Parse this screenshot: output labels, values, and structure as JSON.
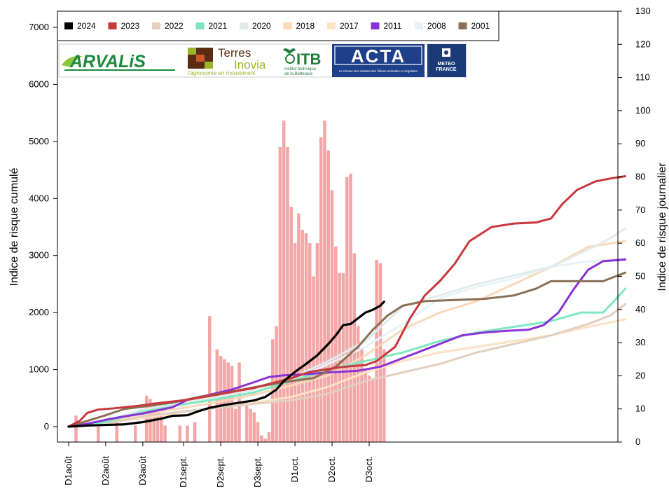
{
  "chart_data": {
    "type": "line",
    "xlabel": "",
    "ylabel": "Indice de risque cumulé",
    "y2label": "Indice de risque journalier",
    "categories": [
      "D1août",
      "D2août",
      "D3août",
      "D1sept.",
      "D2sept.",
      "D3sept.",
      "D1oct.",
      "D2oct.",
      "D3oct."
    ],
    "ylim": [
      0,
      7000
    ],
    "y2lim": [
      0,
      130
    ],
    "yticks": [
      0,
      1000,
      2000,
      3000,
      4000,
      5000,
      6000,
      7000
    ],
    "y2ticks": [
      0,
      10,
      20,
      30,
      40,
      50,
      60,
      70,
      80,
      90,
      100,
      110,
      120,
      130
    ],
    "xlim_days": [
      -3,
      148
    ],
    "category_days": [
      0,
      10,
      20,
      31,
      41,
      51,
      61,
      71,
      81
    ],
    "legend_position": "top-left",
    "grid": false,
    "series": [
      {
        "name": "2024",
        "color": "#000000",
        "width": 3.2,
        "points": [
          [
            0,
            0
          ],
          [
            5,
            20
          ],
          [
            10,
            30
          ],
          [
            15,
            40
          ],
          [
            20,
            80
          ],
          [
            25,
            140
          ],
          [
            28,
            190
          ],
          [
            32,
            200
          ],
          [
            35,
            270
          ],
          [
            38,
            330
          ],
          [
            42,
            380
          ],
          [
            46,
            420
          ],
          [
            50,
            460
          ],
          [
            53,
            520
          ],
          [
            56,
            650
          ],
          [
            58,
            800
          ],
          [
            61,
            960
          ],
          [
            64,
            1100
          ],
          [
            67,
            1250
          ],
          [
            70,
            1450
          ],
          [
            72,
            1600
          ],
          [
            74,
            1780
          ],
          [
            76,
            1800
          ],
          [
            78,
            1900
          ],
          [
            80,
            2000
          ],
          [
            82,
            2050
          ],
          [
            84,
            2120
          ],
          [
            85,
            2190
          ]
        ]
      },
      {
        "name": "2023",
        "color": "#c8373c",
        "width": 3,
        "points": [
          [
            0,
            0
          ],
          [
            3,
            100
          ],
          [
            5,
            240
          ],
          [
            8,
            300
          ],
          [
            12,
            320
          ],
          [
            18,
            360
          ],
          [
            25,
            420
          ],
          [
            32,
            470
          ],
          [
            40,
            560
          ],
          [
            50,
            680
          ],
          [
            60,
            850
          ],
          [
            65,
            960
          ],
          [
            72,
            1030
          ],
          [
            76,
            1060
          ],
          [
            80,
            1080
          ],
          [
            83,
            1150
          ],
          [
            88,
            1400
          ],
          [
            92,
            1900
          ],
          [
            96,
            2300
          ],
          [
            100,
            2550
          ],
          [
            104,
            2850
          ],
          [
            108,
            3250
          ],
          [
            114,
            3500
          ],
          [
            120,
            3560
          ],
          [
            126,
            3580
          ],
          [
            130,
            3650
          ],
          [
            133,
            3900
          ],
          [
            137,
            4150
          ],
          [
            142,
            4300
          ],
          [
            146,
            4350
          ],
          [
            150,
            4390
          ]
        ]
      },
      {
        "name": "2022",
        "color": "#e3cfbf",
        "width": 3,
        "points": [
          [
            0,
            0
          ],
          [
            10,
            50
          ],
          [
            20,
            180
          ],
          [
            30,
            260
          ],
          [
            40,
            330
          ],
          [
            50,
            400
          ],
          [
            60,
            460
          ],
          [
            70,
            580
          ],
          [
            80,
            800
          ],
          [
            90,
            950
          ],
          [
            100,
            1100
          ],
          [
            110,
            1300
          ],
          [
            120,
            1450
          ],
          [
            130,
            1600
          ],
          [
            140,
            1800
          ],
          [
            146,
            1950
          ],
          [
            150,
            2150
          ]
        ]
      },
      {
        "name": "2021",
        "color": "#7fe8c0",
        "width": 3,
        "points": [
          [
            0,
            0
          ],
          [
            10,
            80
          ],
          [
            20,
            260
          ],
          [
            30,
            380
          ],
          [
            40,
            480
          ],
          [
            50,
            600
          ],
          [
            60,
            800
          ],
          [
            70,
            1000
          ],
          [
            80,
            1150
          ],
          [
            90,
            1300
          ],
          [
            100,
            1500
          ],
          [
            110,
            1650
          ],
          [
            120,
            1750
          ],
          [
            130,
            1850
          ],
          [
            138,
            2000
          ],
          [
            144,
            2000
          ],
          [
            147,
            2200
          ],
          [
            150,
            2420
          ]
        ]
      },
      {
        "name": "2020",
        "color": "#dfebeb",
        "width": 3,
        "points": [
          [
            0,
            0
          ],
          [
            10,
            100
          ],
          [
            20,
            300
          ],
          [
            30,
            400
          ],
          [
            40,
            520
          ],
          [
            50,
            650
          ],
          [
            60,
            850
          ],
          [
            70,
            1150
          ],
          [
            80,
            1500
          ],
          [
            90,
            2100
          ],
          [
            100,
            2300
          ],
          [
            110,
            2500
          ],
          [
            120,
            2650
          ],
          [
            130,
            2800
          ],
          [
            140,
            3100
          ],
          [
            146,
            3300
          ],
          [
            150,
            3480
          ]
        ]
      },
      {
        "name": "2018",
        "color": "#fad8b8",
        "width": 3,
        "points": [
          [
            0,
            0
          ],
          [
            10,
            80
          ],
          [
            20,
            220
          ],
          [
            30,
            320
          ],
          [
            40,
            430
          ],
          [
            50,
            560
          ],
          [
            60,
            720
          ],
          [
            70,
            900
          ],
          [
            80,
            1250
          ],
          [
            90,
            1700
          ],
          [
            100,
            2000
          ],
          [
            110,
            2200
          ],
          [
            120,
            2500
          ],
          [
            130,
            2800
          ],
          [
            140,
            3150
          ],
          [
            150,
            3250
          ]
        ]
      },
      {
        "name": "2017",
        "color": "#fde2c2",
        "width": 3,
        "points": [
          [
            0,
            0
          ],
          [
            10,
            60
          ],
          [
            20,
            150
          ],
          [
            30,
            250
          ],
          [
            40,
            330
          ],
          [
            50,
            420
          ],
          [
            60,
            520
          ],
          [
            70,
            700
          ],
          [
            80,
            950
          ],
          [
            90,
            1150
          ],
          [
            100,
            1300
          ],
          [
            110,
            1400
          ],
          [
            120,
            1500
          ],
          [
            130,
            1600
          ],
          [
            140,
            1750
          ],
          [
            150,
            1880
          ]
        ]
      },
      {
        "name": "2011",
        "color": "#8a32d8",
        "width": 3,
        "points": [
          [
            0,
            0
          ],
          [
            5,
            50
          ],
          [
            10,
            120
          ],
          [
            15,
            180
          ],
          [
            20,
            230
          ],
          [
            28,
            340
          ],
          [
            32,
            470
          ],
          [
            38,
            560
          ],
          [
            44,
            650
          ],
          [
            50,
            780
          ],
          [
            54,
            870
          ],
          [
            58,
            900
          ],
          [
            64,
            920
          ],
          [
            70,
            950
          ],
          [
            78,
            980
          ],
          [
            84,
            1050
          ],
          [
            90,
            1200
          ],
          [
            96,
            1350
          ],
          [
            102,
            1500
          ],
          [
            106,
            1600
          ],
          [
            112,
            1650
          ],
          [
            118,
            1680
          ],
          [
            124,
            1700
          ],
          [
            128,
            1780
          ],
          [
            132,
            2000
          ],
          [
            136,
            2400
          ],
          [
            140,
            2750
          ],
          [
            144,
            2900
          ],
          [
            150,
            2930
          ]
        ]
      },
      {
        "name": "2008",
        "color": "#e6f2fa",
        "width": 3,
        "points": [
          [
            0,
            0
          ],
          [
            10,
            120
          ],
          [
            20,
            280
          ],
          [
            30,
            380
          ],
          [
            40,
            480
          ],
          [
            50,
            600
          ],
          [
            60,
            800
          ],
          [
            70,
            1100
          ],
          [
            80,
            1400
          ],
          [
            90,
            1800
          ],
          [
            100,
            2250
          ],
          [
            110,
            2450
          ],
          [
            120,
            2600
          ],
          [
            130,
            2800
          ],
          [
            140,
            2900
          ],
          [
            150,
            2950
          ]
        ]
      },
      {
        "name": "2001",
        "color": "#8a6f55",
        "width": 3,
        "points": [
          [
            0,
            0
          ],
          [
            5,
            100
          ],
          [
            10,
            200
          ],
          [
            15,
            310
          ],
          [
            20,
            350
          ],
          [
            28,
            420
          ],
          [
            35,
            520
          ],
          [
            42,
            590
          ],
          [
            50,
            690
          ],
          [
            60,
            800
          ],
          [
            66,
            850
          ],
          [
            72,
            1050
          ],
          [
            78,
            1400
          ],
          [
            82,
            1700
          ],
          [
            86,
            1950
          ],
          [
            90,
            2120
          ],
          [
            96,
            2200
          ],
          [
            104,
            2220
          ],
          [
            112,
            2240
          ],
          [
            120,
            2300
          ],
          [
            126,
            2420
          ],
          [
            130,
            2550
          ],
          [
            136,
            2550
          ],
          [
            144,
            2550
          ],
          [
            150,
            2700
          ]
        ]
      }
    ],
    "daily_bars": {
      "name": "Indice de risque journalier",
      "color": "#f4a6a6",
      "axis": "right",
      "days": [
        2,
        8,
        13,
        18,
        21,
        22,
        23,
        24,
        25,
        26,
        30,
        32,
        34,
        38,
        40,
        41,
        42,
        43,
        44,
        45,
        46,
        48,
        49,
        50,
        51,
        52,
        53,
        54,
        55,
        56,
        57,
        58,
        59,
        60,
        61,
        62,
        63,
        64,
        65,
        66,
        67,
        68,
        69,
        70,
        71,
        72,
        73,
        74,
        75,
        76,
        77,
        78,
        79,
        80,
        81,
        82,
        83,
        84,
        85
      ],
      "values": [
        8,
        5,
        6,
        5,
        14,
        13,
        12,
        10,
        8,
        5,
        5,
        5,
        6,
        38,
        28,
        26,
        25,
        24,
        23,
        10,
        24,
        12,
        10,
        9,
        6,
        2,
        1,
        3,
        31,
        35,
        89,
        97,
        89,
        71,
        60,
        69,
        64,
        63,
        60,
        50,
        60,
        92,
        97,
        88,
        76,
        59,
        51,
        51,
        80,
        81,
        57,
        35,
        28,
        22,
        20,
        19,
        55,
        54,
        28
      ]
    }
  },
  "legend": {
    "entries": [
      {
        "label": "2024",
        "color": "#000000"
      },
      {
        "label": "2023",
        "color": "#c8373c"
      },
      {
        "label": "2022",
        "color": "#e3cfbf"
      },
      {
        "label": "2021",
        "color": "#7fe8c0"
      },
      {
        "label": "2020",
        "color": "#dfebeb"
      },
      {
        "label": "2018",
        "color": "#fad8b8"
      },
      {
        "label": "2017",
        "color": "#fde2c2"
      },
      {
        "label": "2011",
        "color": "#8a32d8"
      },
      {
        "label": "2008",
        "color": "#e6f2fa"
      },
      {
        "label": "2001",
        "color": "#8a6f55"
      }
    ]
  },
  "logos": {
    "arvalis": "ARVALiS",
    "terres_inovia_top": "Terres",
    "terres_inovia_bottom": "Inovia",
    "terres_inovia_tagline": "l'agronomie en mouvement",
    "itb": "ITB",
    "itb_sub1": "institut technique",
    "itb_sub2": "de la Betterave",
    "acta": "ACTA",
    "acta_tagline": "Le réseau des instituts des filières animales et végétales",
    "meteo_line1": "METEO",
    "meteo_line2": "FRANCE",
    "colors": {
      "arvalis": "#1b8a3c",
      "terres_dark": "#5a2c14",
      "terres_green": "#9ab529",
      "itb": "#1f7d3a",
      "acta_bg": "#1e3f8a",
      "meteo_bg": "#1c3a78"
    }
  }
}
